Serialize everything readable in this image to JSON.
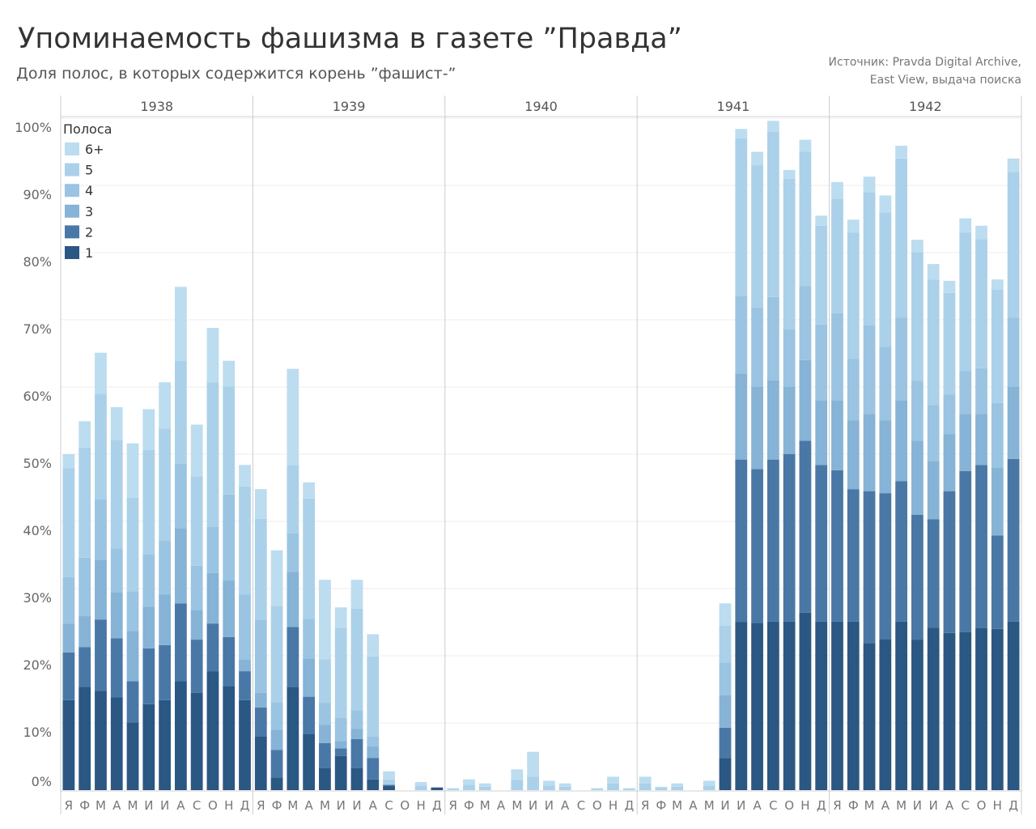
{
  "title": "Упоминаемость фашизма в газете ”Правда”",
  "subtitle": "Доля полос, в которых содержится корень ”фашист-”",
  "source": [
    "Источник: Pravda Digital Archive,",
    "East View, выдача поиска"
  ],
  "chart_data": {
    "type": "bar",
    "stacked": true,
    "years": [
      "1938",
      "1939",
      "1940",
      "1941",
      "1942"
    ],
    "month_labels": [
      "Я",
      "Ф",
      "М",
      "А",
      "М",
      "И",
      "И",
      "А",
      "С",
      "О",
      "Н",
      "Д"
    ],
    "y_ticks": [
      "0%",
      "10%",
      "20%",
      "30%",
      "40%",
      "50%",
      "60%",
      "70%",
      "80%",
      "90%",
      "100%"
    ],
    "ylim": [
      0,
      100
    ],
    "grid": true,
    "legend": {
      "title": "Полоса",
      "placement": "top-left",
      "entries": [
        "6+",
        "5",
        "4",
        "3",
        "2",
        "1"
      ]
    },
    "series_order": [
      "1",
      "2",
      "3",
      "4",
      "5",
      "6+"
    ],
    "colors": {
      "1": "#2b5783",
      "2": "#4a78a6",
      "3": "#86b3d6",
      "4": "#9ac4e2",
      "5": "#abd0ea",
      "6+": "#bcdcf0"
    },
    "stacks": [
      [
        13.4,
        7.1,
        4.3,
        6.9,
        16.2,
        2.1
      ],
      [
        15.4,
        5.9,
        4.6,
        8.7,
        16.4,
        3.9
      ],
      [
        14.8,
        10.6,
        8.9,
        9.0,
        15.7,
        6.1
      ],
      [
        13.8,
        8.8,
        6.8,
        6.6,
        16.1,
        4.9
      ],
      [
        10.1,
        6.1,
        7.5,
        5.9,
        13.9,
        8.1
      ],
      [
        12.8,
        8.3,
        6.2,
        7.8,
        15.5,
        6.1
      ],
      [
        13.4,
        8.2,
        7.5,
        8.0,
        16.7,
        6.9
      ],
      [
        16.2,
        11.6,
        11.2,
        9.6,
        15.3,
        11.0
      ],
      [
        14.5,
        7.9,
        4.4,
        6.6,
        13.3,
        7.7
      ],
      [
        17.7,
        7.1,
        7.5,
        6.9,
        21.5,
        8.1
      ],
      [
        15.5,
        7.3,
        8.4,
        12.8,
        16.1,
        3.8
      ],
      [
        13.4,
        4.3,
        1.7,
        9.7,
        16.1,
        3.2
      ],
      [
        8.0,
        4.3,
        2.2,
        10.8,
        15.1,
        4.4
      ],
      [
        1.9,
        4.1,
        3.0,
        4.1,
        14.3,
        8.3
      ],
      [
        15.3,
        9.0,
        8.2,
        5.7,
        10.2,
        14.3
      ],
      [
        8.4,
        5.5,
        5.7,
        5.9,
        17.9,
        2.4
      ],
      [
        3.3,
        3.7,
        2.7,
        3.3,
        6.5,
        11.8
      ],
      [
        5.1,
        1.1,
        1.1,
        3.5,
        13.3,
        3.1
      ],
      [
        3.3,
        4.3,
        1.5,
        2.8,
        15.1,
        4.3
      ],
      [
        1.6,
        3.2,
        1.7,
        1.5,
        11.9,
        3.3
      ],
      [
        0.6,
        0.2,
        0,
        0,
        0.8,
        1.2
      ],
      [
        0,
        0,
        0,
        0,
        0,
        0
      ],
      [
        0,
        0,
        0,
        0,
        0.6,
        0.6
      ],
      [
        0.4,
        0,
        0,
        0,
        0,
        0
      ],
      [
        0,
        0,
        0,
        0,
        0.2,
        0.1
      ],
      [
        0,
        0,
        0,
        0,
        0.8,
        0.8
      ],
      [
        0,
        0,
        0,
        0,
        0.5,
        0.5
      ],
      [
        0,
        0,
        0,
        0,
        0,
        0
      ],
      [
        0,
        0,
        0,
        0,
        1.5,
        1.6
      ],
      [
        0,
        0,
        0,
        0,
        2.0,
        3.7
      ],
      [
        0,
        0,
        0,
        0,
        0.7,
        0.7
      ],
      [
        0,
        0,
        0,
        0,
        0.5,
        0.5
      ],
      [
        0,
        0,
        0,
        0,
        0,
        0
      ],
      [
        0,
        0,
        0,
        0,
        0.2,
        0.1
      ],
      [
        0,
        0,
        0,
        0,
        1.0,
        1.0
      ],
      [
        0,
        0,
        0,
        0,
        0.2,
        0.1
      ],
      [
        0,
        0,
        0,
        0,
        1.0,
        1.0
      ],
      [
        0,
        0,
        0,
        0,
        0.3,
        0.2
      ],
      [
        0,
        0,
        0,
        0,
        0.5,
        0.5
      ],
      [
        0,
        0,
        0,
        0,
        0,
        0
      ],
      [
        0,
        0,
        0,
        0,
        0.7,
        0.7
      ],
      [
        4.8,
        4.5,
        4.8,
        4.9,
        5.5,
        3.3
      ],
      [
        25.0,
        24.2,
        12.8,
        11.5,
        23.5,
        1.4
      ],
      [
        24.9,
        22.9,
        12.2,
        11.8,
        21.2,
        2.0
      ],
      [
        25.1,
        24.1,
        11.8,
        12.4,
        24.6,
        1.6
      ],
      [
        25.1,
        24.9,
        10.0,
        8.6,
        22.4,
        1.3
      ],
      [
        26.4,
        25.6,
        12.0,
        11.0,
        20.0,
        1.8
      ],
      [
        25.1,
        23.3,
        9.6,
        11.3,
        14.7,
        1.5
      ],
      [
        25.1,
        22.5,
        10.4,
        13.0,
        17.0,
        2.5
      ],
      [
        25.1,
        19.7,
        10.2,
        9.2,
        18.8,
        1.9
      ],
      [
        21.9,
        22.6,
        11.5,
        13.2,
        19.8,
        2.3
      ],
      [
        22.5,
        21.7,
        10.8,
        11.0,
        20.0,
        2.5
      ],
      [
        25.1,
        20.9,
        12.0,
        12.3,
        23.7,
        1.9
      ],
      [
        22.4,
        18.6,
        11.0,
        8.9,
        19.1,
        1.9
      ],
      [
        24.2,
        16.1,
        8.7,
        8.3,
        18.7,
        2.3
      ],
      [
        23.4,
        21.1,
        8.5,
        5.9,
        15.1,
        1.8
      ],
      [
        23.5,
        24.0,
        8.5,
        6.4,
        20.6,
        2.1
      ],
      [
        24.1,
        24.3,
        7.6,
        6.8,
        19.2,
        2.0
      ],
      [
        24.0,
        13.9,
        10.1,
        9.6,
        16.9,
        1.5
      ],
      [
        25.1,
        24.2,
        10.7,
        10.3,
        21.7,
        2.0
      ]
    ]
  }
}
